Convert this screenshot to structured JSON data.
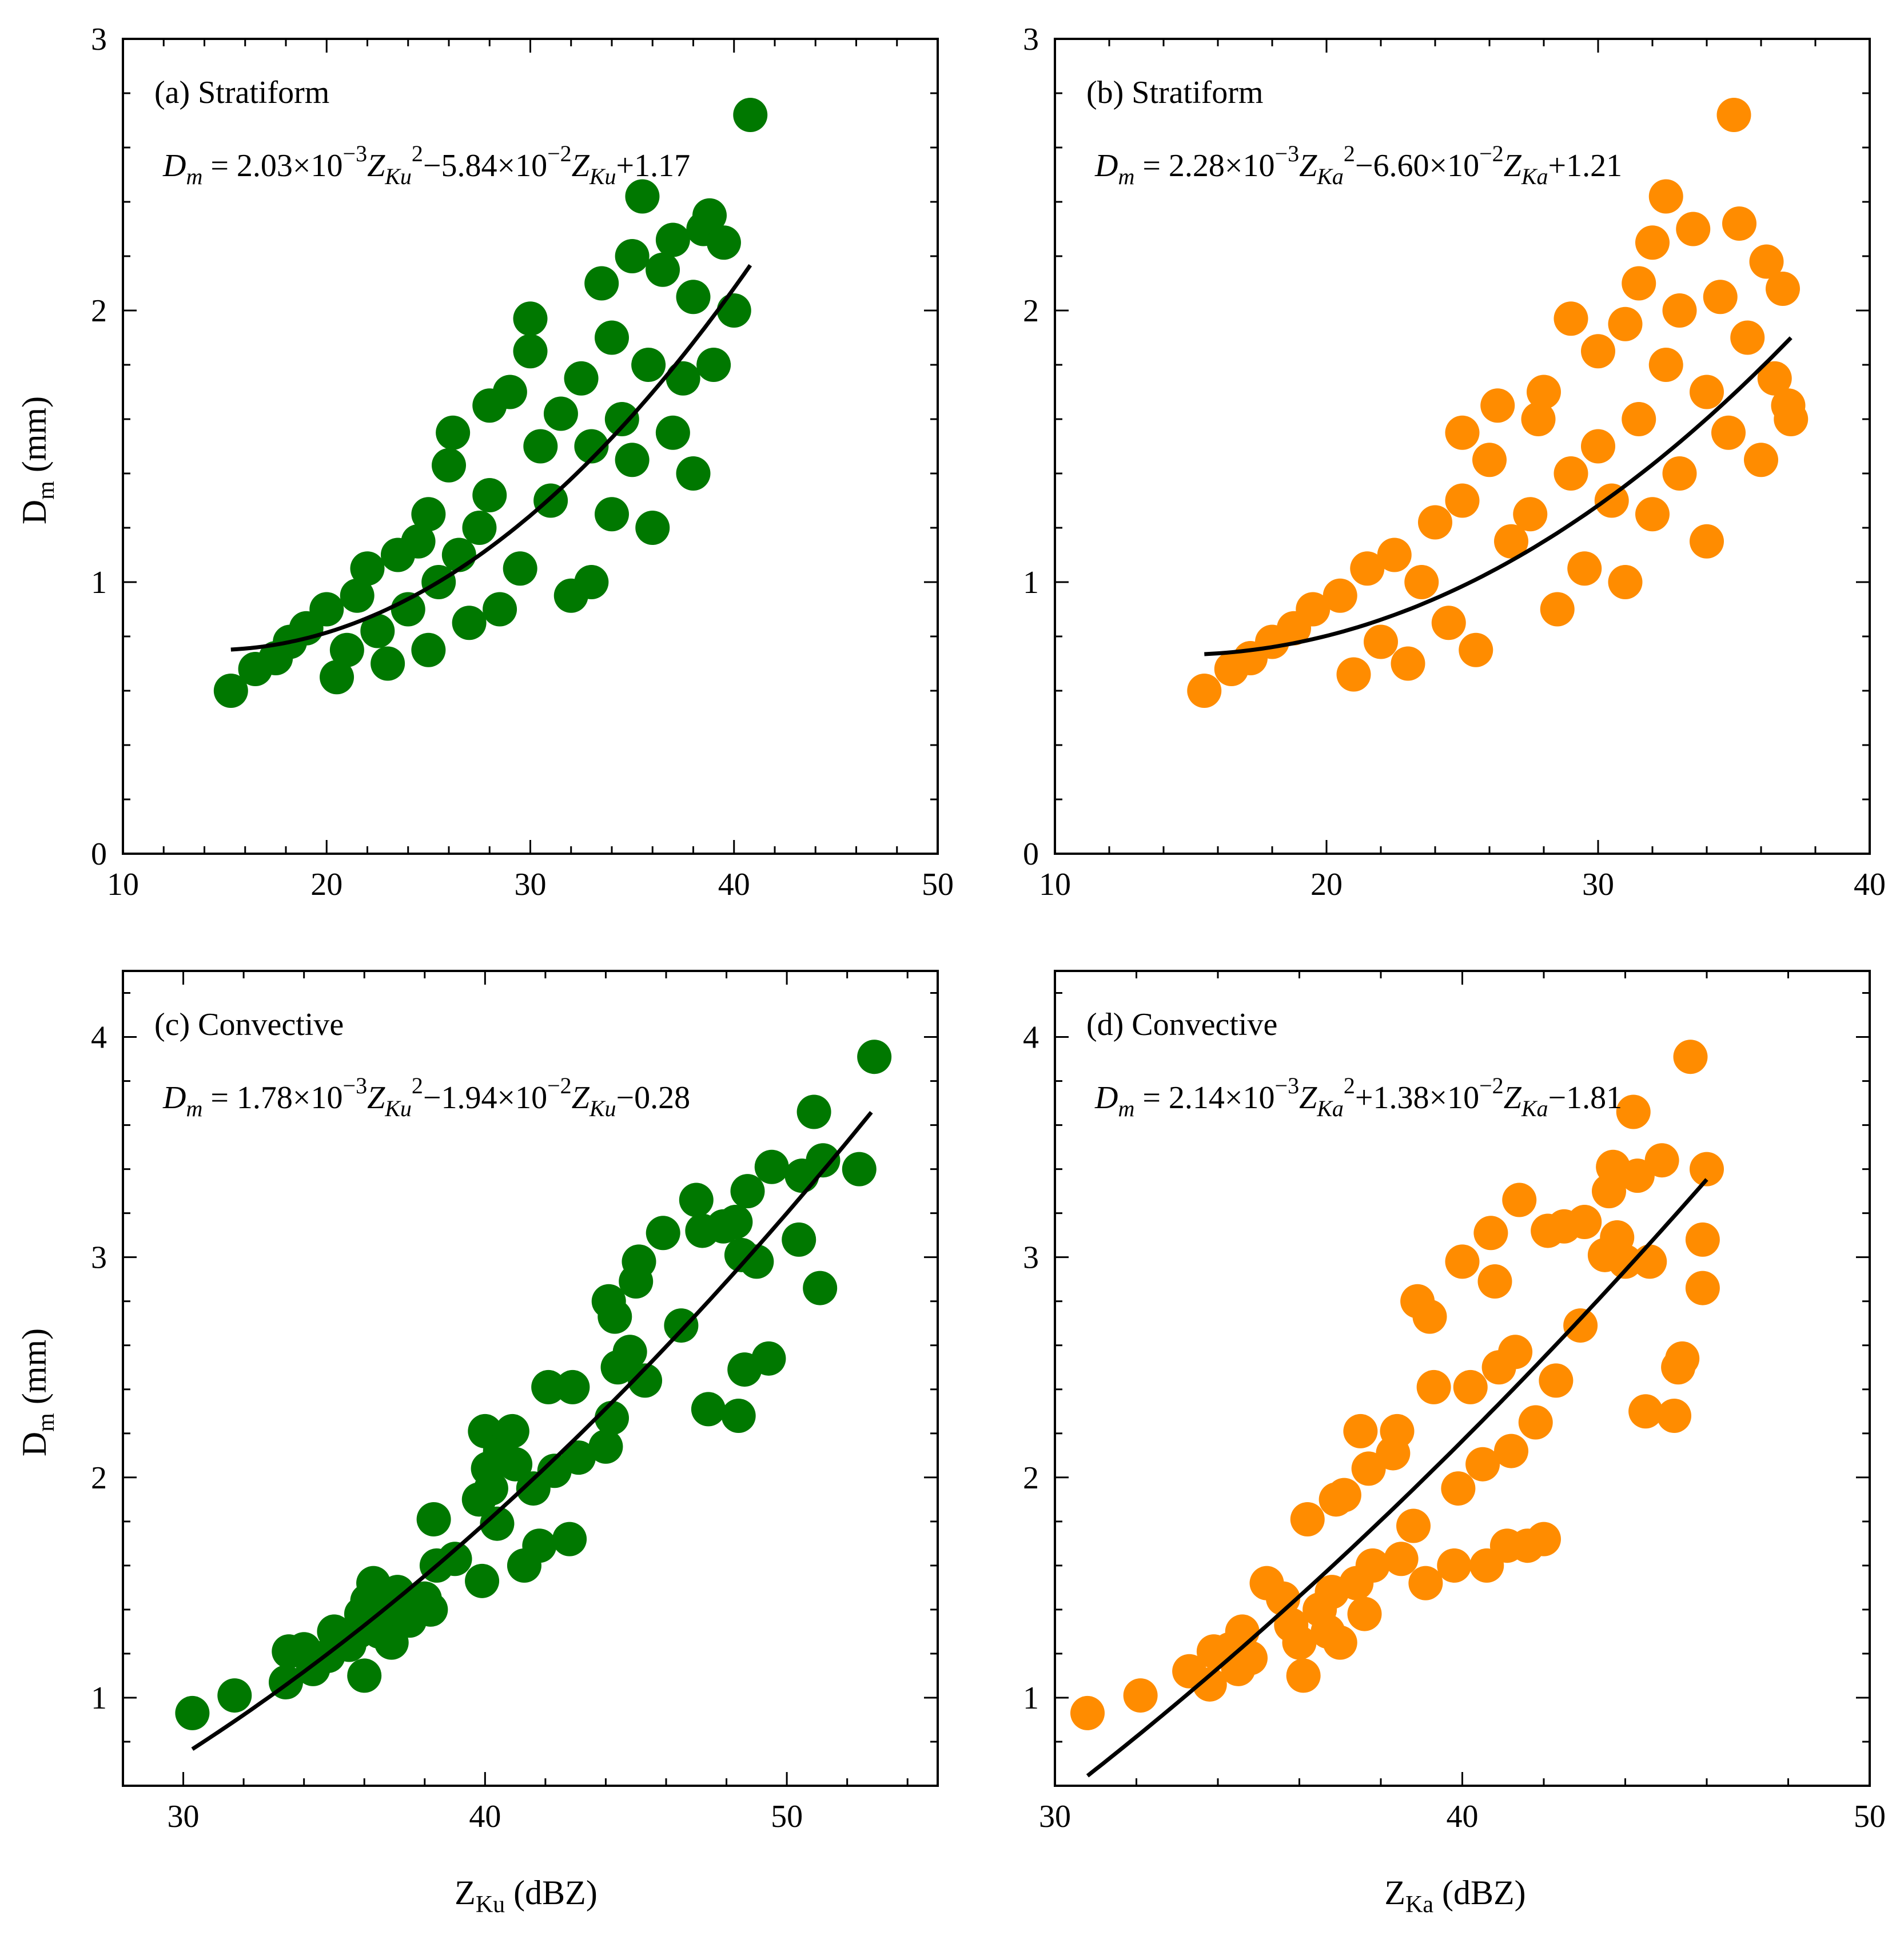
{
  "figure": {
    "colors": {
      "ku": "#007800",
      "ka": "#ff8c00",
      "fit": "#000000",
      "axis": "#000000"
    },
    "y_label_main": "D",
    "y_label_sub": "m",
    "y_label_unit": " (mm)",
    "x_label_ku_main": "Z",
    "x_label_ku_sub": "Ku",
    "x_label_ka_main": "Z",
    "x_label_ka_sub": "Ka",
    "x_label_unit": " (dBZ)"
  },
  "chart_data": [
    {
      "id": "a",
      "type": "scatter",
      "title": "(a) Stratiform",
      "series_color": "ku",
      "xlim": [
        10,
        50
      ],
      "ylim": [
        0,
        3
      ],
      "xticks": [
        10,
        20,
        30,
        40,
        50
      ],
      "yticks": [
        0,
        1,
        2,
        3
      ],
      "xlabel": "",
      "ylabel": "Dm (mm)",
      "fit": {
        "a": 0.00203,
        "b": -0.0584,
        "c": 1.17,
        "x_range": [
          15.3,
          40.8
        ]
      },
      "equation": {
        "lhs": "D",
        "lhs_sub": "m",
        "eq": " = 2.03×10",
        "e1": "−3",
        "z1": "Z",
        "s1": "Ku",
        "p1": "2",
        "mid": "−5.84×10",
        "e2": "−2",
        "z2": "Z",
        "s2": "Ku",
        "tail": "+1.17"
      },
      "points": [
        [
          15.3,
          0.6
        ],
        [
          16.5,
          0.68
        ],
        [
          17.5,
          0.72
        ],
        [
          18.2,
          0.78
        ],
        [
          19.0,
          0.83
        ],
        [
          20.0,
          0.9
        ],
        [
          20.5,
          0.65
        ],
        [
          21.0,
          0.75
        ],
        [
          21.5,
          0.95
        ],
        [
          22.0,
          1.05
        ],
        [
          22.5,
          0.82
        ],
        [
          23.0,
          0.7
        ],
        [
          23.5,
          1.1
        ],
        [
          24.0,
          0.9
        ],
        [
          24.5,
          1.15
        ],
        [
          25.0,
          0.75
        ],
        [
          25.0,
          1.25
        ],
        [
          25.5,
          1.0
        ],
        [
          26.0,
          1.43
        ],
        [
          26.2,
          1.55
        ],
        [
          26.5,
          1.1
        ],
        [
          27.0,
          0.85
        ],
        [
          27.5,
          1.2
        ],
        [
          28.0,
          1.32
        ],
        [
          28.0,
          1.65
        ],
        [
          28.5,
          0.9
        ],
        [
          29.0,
          1.7
        ],
        [
          29.5,
          1.05
        ],
        [
          30.0,
          1.97
        ],
        [
          30.0,
          1.85
        ],
        [
          30.5,
          1.5
        ],
        [
          31.0,
          1.3
        ],
        [
          31.5,
          1.62
        ],
        [
          32.0,
          0.95
        ],
        [
          32.5,
          1.75
        ],
        [
          33.0,
          1.0
        ],
        [
          33.0,
          1.5
        ],
        [
          33.5,
          2.1
        ],
        [
          34.0,
          1.25
        ],
        [
          34.0,
          1.9
        ],
        [
          34.5,
          1.6
        ],
        [
          35.0,
          2.2
        ],
        [
          35.0,
          1.45
        ],
        [
          35.5,
          2.42
        ],
        [
          35.8,
          1.8
        ],
        [
          36.0,
          1.2
        ],
        [
          36.5,
          2.15
        ],
        [
          37.0,
          1.55
        ],
        [
          37.0,
          2.26
        ],
        [
          37.5,
          1.75
        ],
        [
          38.0,
          2.05
        ],
        [
          38.0,
          1.4
        ],
        [
          38.5,
          2.3
        ],
        [
          38.8,
          2.35
        ],
        [
          39.0,
          1.8
        ],
        [
          39.5,
          2.25
        ],
        [
          40.0,
          2.0
        ],
        [
          40.8,
          2.72
        ]
      ]
    },
    {
      "id": "b",
      "type": "scatter",
      "title": "(b) Stratiform",
      "series_color": "ka",
      "xlim": [
        10,
        40
      ],
      "ylim": [
        0,
        3
      ],
      "xticks": [
        10,
        20,
        30,
        40
      ],
      "yticks": [
        0,
        1,
        2,
        3
      ],
      "xlabel": "",
      "ylabel": "",
      "fit": {
        "a": 0.00228,
        "b": -0.066,
        "c": 1.21,
        "x_range": [
          15.5,
          37.1
        ]
      },
      "equation": {
        "lhs": "D",
        "lhs_sub": "m",
        "eq": " = 2.28×10",
        "e1": "−3",
        "z1": "Z",
        "s1": "Ka",
        "p1": "2",
        "mid": "−6.60×10",
        "e2": "−2",
        "z2": "Z",
        "s2": "Ka",
        "tail": "+1.21"
      },
      "points": [
        [
          15.5,
          0.6
        ],
        [
          16.5,
          0.68
        ],
        [
          17.2,
          0.72
        ],
        [
          18.0,
          0.78
        ],
        [
          18.8,
          0.83
        ],
        [
          19.5,
          0.9
        ],
        [
          20.5,
          0.95
        ],
        [
          21.0,
          0.66
        ],
        [
          21.5,
          1.05
        ],
        [
          22.0,
          0.78
        ],
        [
          22.5,
          1.1
        ],
        [
          23.0,
          0.7
        ],
        [
          23.5,
          1.0
        ],
        [
          24.0,
          1.22
        ],
        [
          24.5,
          0.85
        ],
        [
          25.0,
          1.3
        ],
        [
          25.0,
          1.55
        ],
        [
          25.5,
          0.75
        ],
        [
          26.0,
          1.45
        ],
        [
          26.3,
          1.65
        ],
        [
          26.8,
          1.15
        ],
        [
          27.5,
          1.25
        ],
        [
          27.8,
          1.6
        ],
        [
          28.0,
          1.7
        ],
        [
          28.5,
          0.9
        ],
        [
          29.0,
          1.97
        ],
        [
          29.0,
          1.4
        ],
        [
          29.5,
          1.05
        ],
        [
          30.0,
          1.85
        ],
        [
          30.0,
          1.5
        ],
        [
          30.5,
          1.3
        ],
        [
          31.0,
          1.95
        ],
        [
          31.0,
          1.0
        ],
        [
          31.5,
          2.1
        ],
        [
          31.5,
          1.6
        ],
        [
          32.0,
          2.25
        ],
        [
          32.0,
          1.25
        ],
        [
          32.5,
          2.42
        ],
        [
          32.5,
          1.8
        ],
        [
          33.0,
          2.0
        ],
        [
          33.0,
          1.4
        ],
        [
          33.5,
          2.3
        ],
        [
          34.0,
          1.7
        ],
        [
          34.0,
          1.15
        ],
        [
          34.5,
          2.05
        ],
        [
          34.8,
          1.55
        ],
        [
          35.0,
          2.72
        ],
        [
          35.2,
          2.32
        ],
        [
          35.5,
          1.9
        ],
        [
          36.0,
          1.45
        ],
        [
          36.2,
          2.18
        ],
        [
          36.5,
          1.75
        ],
        [
          36.8,
          2.08
        ],
        [
          37.0,
          1.65
        ],
        [
          37.1,
          1.6
        ]
      ]
    },
    {
      "id": "c",
      "type": "scatter",
      "title": "(c) Convective",
      "series_color": "ku",
      "xlim": [
        28,
        55
      ],
      "ylim": [
        0.6,
        4.3
      ],
      "xticks": [
        30,
        40,
        50
      ],
      "yticks": [
        1,
        2,
        3,
        4
      ],
      "xlabel": "ZKu (dBZ)",
      "ylabel": "Dm (mm)",
      "fit": {
        "a": 0.00178,
        "b": -0.0194,
        "c": -0.28,
        "x_range": [
          30.3,
          52.8
        ]
      },
      "equation": {
        "lhs": "D",
        "lhs_sub": "m",
        "eq": " = 1.78×10",
        "e1": "−3",
        "z1": "Z",
        "s1": "Ku",
        "p1": "2",
        "mid": "−1.94×10",
        "e2": "−2",
        "z2": "Z",
        "s2": "Ku",
        "tail": "−0.28"
      },
      "points": [
        [
          30.3,
          0.93
        ],
        [
          31.7,
          1.01
        ],
        [
          33.4,
          1.07
        ],
        [
          33.5,
          1.21
        ],
        [
          34.0,
          1.22
        ],
        [
          34.3,
          1.13
        ],
        [
          34.8,
          1.19
        ],
        [
          35.0,
          1.3
        ],
        [
          35.5,
          1.24
        ],
        [
          35.8,
          1.3
        ],
        [
          35.9,
          1.38
        ],
        [
          36.0,
          1.1
        ],
        [
          36.1,
          1.44
        ],
        [
          36.3,
          1.52
        ],
        [
          36.5,
          1.3
        ],
        [
          36.7,
          1.4
        ],
        [
          36.9,
          1.25
        ],
        [
          37.1,
          1.48
        ],
        [
          37.5,
          1.35
        ],
        [
          38.0,
          1.45
        ],
        [
          38.2,
          1.4
        ],
        [
          38.3,
          1.81
        ],
        [
          38.4,
          1.6
        ],
        [
          39.0,
          1.63
        ],
        [
          39.8,
          1.9
        ],
        [
          39.9,
          1.53
        ],
        [
          40.0,
          2.21
        ],
        [
          40.1,
          2.04
        ],
        [
          40.2,
          1.95
        ],
        [
          40.4,
          1.79
        ],
        [
          40.5,
          2.12
        ],
        [
          40.9,
          2.21
        ],
        [
          41.0,
          2.06
        ],
        [
          41.3,
          1.6
        ],
        [
          41.6,
          1.95
        ],
        [
          41.8,
          1.69
        ],
        [
          42.1,
          2.41
        ],
        [
          42.3,
          2.03
        ],
        [
          42.8,
          1.72
        ],
        [
          42.9,
          2.41
        ],
        [
          43.1,
          2.09
        ],
        [
          44.0,
          2.14
        ],
        [
          44.1,
          2.8
        ],
        [
          44.2,
          2.27
        ],
        [
          44.3,
          2.73
        ],
        [
          44.4,
          2.5
        ],
        [
          44.8,
          2.57
        ],
        [
          45.0,
          2.89
        ],
        [
          45.1,
          2.98
        ],
        [
          45.3,
          2.44
        ],
        [
          45.9,
          3.11
        ],
        [
          46.5,
          2.69
        ],
        [
          47.0,
          3.26
        ],
        [
          47.2,
          3.12
        ],
        [
          47.4,
          2.31
        ],
        [
          47.9,
          3.14
        ],
        [
          48.3,
          3.16
        ],
        [
          48.4,
          2.28
        ],
        [
          48.5,
          3.01
        ],
        [
          48.6,
          2.49
        ],
        [
          48.7,
          3.3
        ],
        [
          49.0,
          2.98
        ],
        [
          49.4,
          2.54
        ],
        [
          49.5,
          3.41
        ],
        [
          50.4,
          3.08
        ],
        [
          50.5,
          3.37
        ],
        [
          50.9,
          3.66
        ],
        [
          51.1,
          2.86
        ],
        [
          51.2,
          3.44
        ],
        [
          52.4,
          3.4
        ],
        [
          52.9,
          3.91
        ]
      ]
    },
    {
      "id": "d",
      "type": "scatter",
      "title": "(d) Convective",
      "series_color": "ka",
      "xlim": [
        30,
        50
      ],
      "ylim": [
        0.6,
        4.3
      ],
      "xticks": [
        30,
        40,
        50
      ],
      "yticks": [
        1,
        2,
        3,
        4
      ],
      "xlabel": "ZKa (dBZ)",
      "ylabel": "",
      "fit": {
        "a": 0.00214,
        "b": 0.0138,
        "c": -1.81,
        "x_range": [
          30.8,
          46.0
        ]
      },
      "equation": {
        "lhs": "D",
        "lhs_sub": "m",
        "eq": " = 2.14×10",
        "e1": "−3",
        "z1": "Z",
        "s1": "Ka",
        "p1": "2",
        "mid": "+1.38×10",
        "e2": "−2",
        "z2": "Z",
        "s2": "Ka",
        "tail": "−1.81"
      },
      "points": [
        [
          30.8,
          0.93
        ],
        [
          32.1,
          1.01
        ],
        [
          33.3,
          1.12
        ],
        [
          33.8,
          1.06
        ],
        [
          33.9,
          1.21
        ],
        [
          34.3,
          1.22
        ],
        [
          34.5,
          1.13
        ],
        [
          34.6,
          1.3
        ],
        [
          34.8,
          1.18
        ],
        [
          35.2,
          1.52
        ],
        [
          35.6,
          1.45
        ],
        [
          35.8,
          1.33
        ],
        [
          36.0,
          1.25
        ],
        [
          36.1,
          1.1
        ],
        [
          36.2,
          1.81
        ],
        [
          36.5,
          1.4
        ],
        [
          36.7,
          1.3
        ],
        [
          36.8,
          1.48
        ],
        [
          36.9,
          1.9
        ],
        [
          37.0,
          1.25
        ],
        [
          37.1,
          1.92
        ],
        [
          37.4,
          1.52
        ],
        [
          37.5,
          2.21
        ],
        [
          37.6,
          1.38
        ],
        [
          37.7,
          2.04
        ],
        [
          37.8,
          1.6
        ],
        [
          38.3,
          2.11
        ],
        [
          38.4,
          2.21
        ],
        [
          38.5,
          1.63
        ],
        [
          38.8,
          1.78
        ],
        [
          38.9,
          2.8
        ],
        [
          39.1,
          1.52
        ],
        [
          39.2,
          2.73
        ],
        [
          39.3,
          2.41
        ],
        [
          39.8,
          1.6
        ],
        [
          39.9,
          1.95
        ],
        [
          40.0,
          2.98
        ],
        [
          40.2,
          2.41
        ],
        [
          40.5,
          2.06
        ],
        [
          40.6,
          1.6
        ],
        [
          40.7,
          3.11
        ],
        [
          40.8,
          2.89
        ],
        [
          40.9,
          2.5
        ],
        [
          41.1,
          1.69
        ],
        [
          41.2,
          2.12
        ],
        [
          41.3,
          2.57
        ],
        [
          41.4,
          3.26
        ],
        [
          41.6,
          1.69
        ],
        [
          41.8,
          2.25
        ],
        [
          42.0,
          1.72
        ],
        [
          42.1,
          3.12
        ],
        [
          42.3,
          2.44
        ],
        [
          42.5,
          3.14
        ],
        [
          42.9,
          2.69
        ],
        [
          43.0,
          3.16
        ],
        [
          43.5,
          3.01
        ],
        [
          43.6,
          3.3
        ],
        [
          43.7,
          3.41
        ],
        [
          43.8,
          3.09
        ],
        [
          44.0,
          2.98
        ],
        [
          44.2,
          3.66
        ],
        [
          44.3,
          3.37
        ],
        [
          44.5,
          2.3
        ],
        [
          44.6,
          2.98
        ],
        [
          44.9,
          3.44
        ],
        [
          45.2,
          2.28
        ],
        [
          45.3,
          2.5
        ],
        [
          45.4,
          2.54
        ],
        [
          45.6,
          3.91
        ],
        [
          45.9,
          2.86
        ],
        [
          45.9,
          3.08
        ],
        [
          46.0,
          3.4
        ]
      ]
    }
  ]
}
